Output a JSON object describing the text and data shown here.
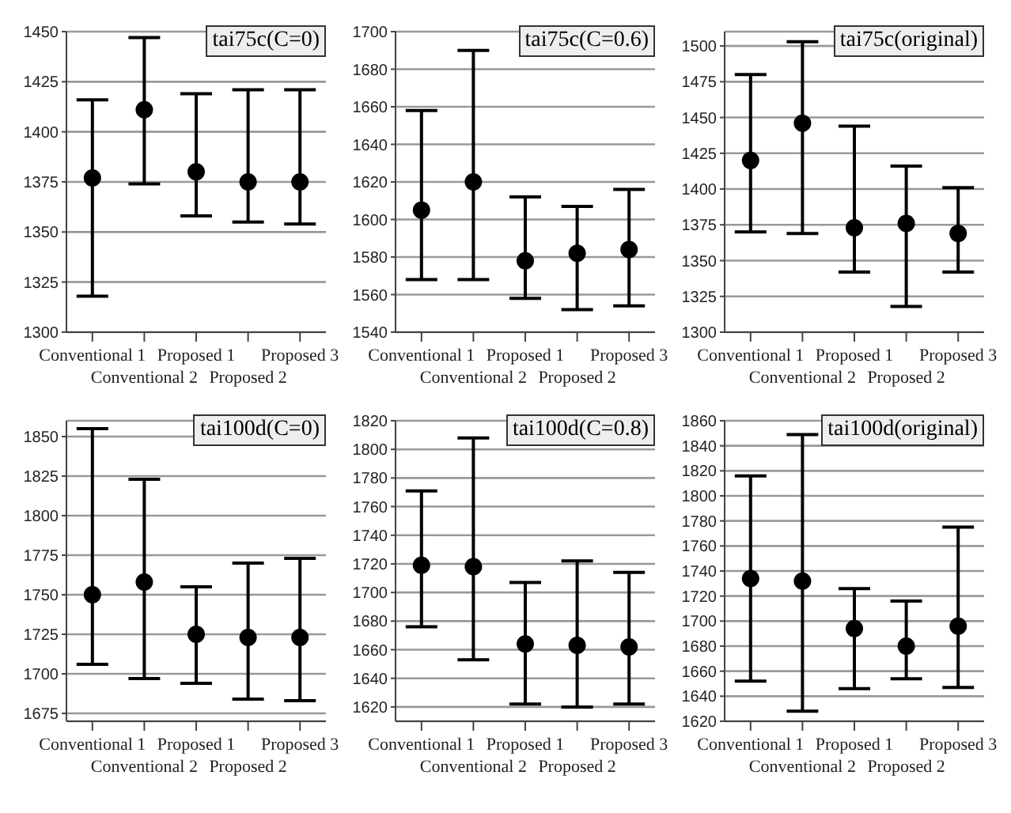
{
  "chart_data": [
    {
      "type": "scatter",
      "title": "tai75c(C=0)",
      "categories": [
        "Conventional 1",
        "Conventional 2",
        "Proposed 1",
        "Proposed 2",
        "Proposed 3"
      ],
      "values": [
        1377,
        1411,
        1380,
        1375,
        1375
      ],
      "errors": [
        [
          1318,
          1416
        ],
        [
          1374,
          1447
        ],
        [
          1358,
          1419
        ],
        [
          1355,
          1421
        ],
        [
          1354,
          1421
        ]
      ],
      "color": "#000000",
      "ylim": [
        1300,
        1450
      ],
      "yticks": [
        1300,
        1325,
        1350,
        1375,
        1400,
        1425,
        1450
      ],
      "grid": "y",
      "marker": "circle"
    },
    {
      "type": "scatter",
      "title": "tai75c(C=0.6)",
      "categories": [
        "Conventional 1",
        "Conventional 2",
        "Proposed 1",
        "Proposed 2",
        "Proposed 3"
      ],
      "values": [
        1605,
        1620,
        1578,
        1582,
        1584
      ],
      "errors": [
        [
          1568,
          1658
        ],
        [
          1568,
          1690
        ],
        [
          1558,
          1612
        ],
        [
          1552,
          1607
        ],
        [
          1554,
          1616
        ]
      ],
      "color": "#000000",
      "ylim": [
        1540,
        1700
      ],
      "yticks": [
        1540,
        1560,
        1580,
        1600,
        1620,
        1640,
        1660,
        1680,
        1700
      ],
      "grid": "y",
      "marker": "circle"
    },
    {
      "type": "scatter",
      "title": "tai75c(original)",
      "categories": [
        "Conventional 1",
        "Conventional 2",
        "Proposed 1",
        "Proposed 2",
        "Proposed 3"
      ],
      "values": [
        1420,
        1446,
        1373,
        1376,
        1369
      ],
      "errors": [
        [
          1370,
          1480
        ],
        [
          1369,
          1503
        ],
        [
          1342,
          1444
        ],
        [
          1318,
          1416
        ],
        [
          1342,
          1401
        ]
      ],
      "color": "#000000",
      "ylim": [
        1300,
        1510
      ],
      "yticks": [
        1300,
        1325,
        1350,
        1375,
        1400,
        1425,
        1450,
        1475,
        1500
      ],
      "grid": "y",
      "marker": "circle"
    },
    {
      "type": "scatter",
      "title": "tai100d(C=0)",
      "categories": [
        "Conventional 1",
        "Conventional 2",
        "Proposed 1",
        "Proposed 2",
        "Proposed 3"
      ],
      "values": [
        1750,
        1758,
        1725,
        1723,
        1723
      ],
      "errors": [
        [
          1706,
          1855
        ],
        [
          1697,
          1823
        ],
        [
          1694,
          1755
        ],
        [
          1684,
          1770
        ],
        [
          1683,
          1773
        ]
      ],
      "color": "#000000",
      "ylim": [
        1670,
        1860
      ],
      "yticks": [
        1675,
        1700,
        1725,
        1750,
        1775,
        1800,
        1825,
        1850
      ],
      "grid": "y",
      "marker": "circle"
    },
    {
      "type": "scatter",
      "title": "tai100d(C=0.8)",
      "categories": [
        "Conventional 1",
        "Conventional 2",
        "Proposed 1",
        "Proposed 2",
        "Proposed 3"
      ],
      "values": [
        1719,
        1718,
        1664,
        1663,
        1662
      ],
      "errors": [
        [
          1676,
          1771
        ],
        [
          1653,
          1808
        ],
        [
          1622,
          1707
        ],
        [
          1620,
          1722
        ],
        [
          1622,
          1714
        ]
      ],
      "color": "#000000",
      "ylim": [
        1610,
        1820
      ],
      "yticks": [
        1620,
        1640,
        1660,
        1680,
        1700,
        1720,
        1740,
        1760,
        1780,
        1800,
        1820
      ],
      "grid": "y",
      "marker": "circle"
    },
    {
      "type": "scatter",
      "title": "tai100d(original)",
      "categories": [
        "Conventional 1",
        "Conventional 2",
        "Proposed 1",
        "Proposed 2",
        "Proposed 3"
      ],
      "values": [
        1734,
        1732,
        1694,
        1680,
        1696
      ],
      "errors": [
        [
          1652,
          1816
        ],
        [
          1628,
          1849
        ],
        [
          1646,
          1726
        ],
        [
          1654,
          1716
        ],
        [
          1647,
          1775
        ]
      ],
      "color": "#000000",
      "ylim": [
        1620,
        1860
      ],
      "yticks": [
        1620,
        1640,
        1660,
        1680,
        1700,
        1720,
        1740,
        1760,
        1780,
        1800,
        1820,
        1840,
        1860
      ],
      "grid": "y",
      "marker": "circle"
    }
  ]
}
